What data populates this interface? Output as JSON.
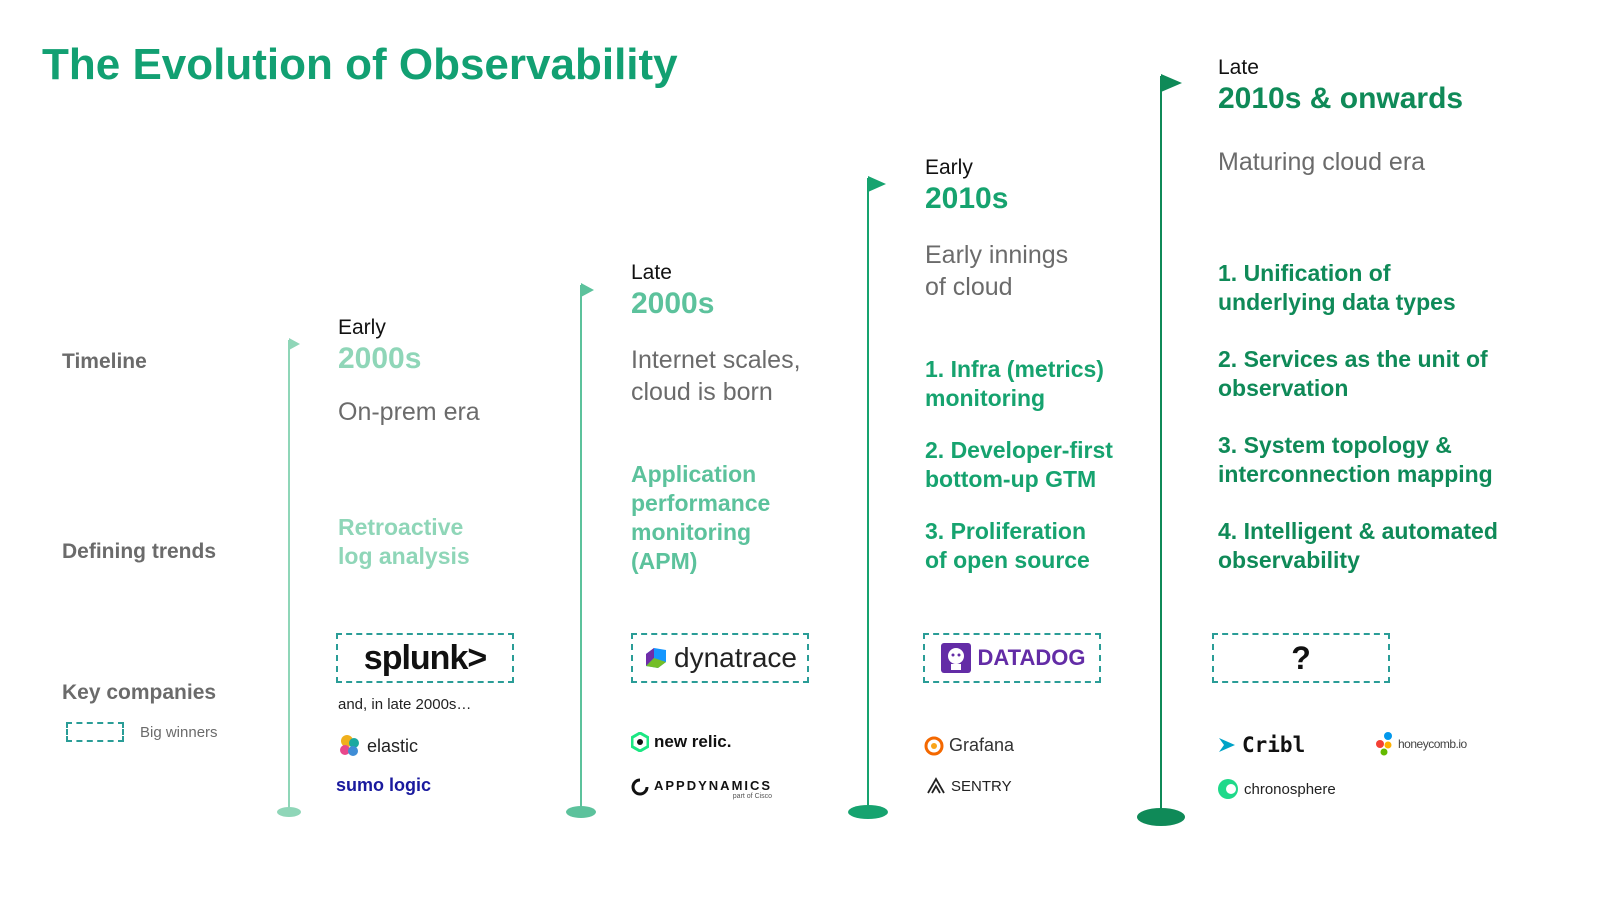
{
  "title": "The Evolution of Observability",
  "row_labels": {
    "timeline": "Timeline",
    "defining_trends": "Defining trends",
    "key_companies": "Key companies"
  },
  "legend": {
    "label": "Big winners"
  },
  "colors": {
    "title": "#12a072",
    "era1": "#8fd6b8",
    "era2": "#5cc29c",
    "era3": "#16a36f",
    "era4": "#0f8a58",
    "box_border": "#2a9d97"
  },
  "eras": [
    {
      "when": "Early",
      "period": "2000s",
      "subtitle": [
        "On-prem era"
      ],
      "trends": [
        [
          "Retroactive",
          "log analysis"
        ]
      ],
      "big_winner": "splunk>",
      "note": "and, in late 2000s…",
      "others": [
        "elastic",
        "sumo logic"
      ]
    },
    {
      "when": "Late",
      "period": "2000s",
      "subtitle": [
        "Internet scales,",
        "cloud is born"
      ],
      "trends": [
        [
          "Application",
          "performance",
          "monitoring",
          "(APM)"
        ]
      ],
      "big_winner": "dynatrace",
      "others": [
        "new relic.",
        "APPDYNAMICS",
        "part of Cisco"
      ]
    },
    {
      "when": "Early",
      "period": "2010s",
      "subtitle": [
        "Early innings",
        "of cloud"
      ],
      "trends": [
        [
          "1. Infra (metrics)",
          "monitoring"
        ],
        [
          "2. Developer-first",
          "bottom-up GTM"
        ],
        [
          "3. Proliferation",
          "of open source"
        ]
      ],
      "big_winner": "DATADOG",
      "others": [
        "Grafana",
        "SENTRY"
      ]
    },
    {
      "when": "Late",
      "period": "2010s & onwards",
      "subtitle": [
        "Maturing cloud era"
      ],
      "trends": [
        [
          "1. Unification of",
          "underlying data types"
        ],
        [
          "2. Services as the unit of",
          "observation"
        ],
        [
          "3. System topology &",
          "interconnection mapping"
        ],
        [
          "4. Intelligent & automated",
          "observability"
        ]
      ],
      "big_winner": "?",
      "others": [
        "Cribl",
        "honeycomb.io",
        "chronosphere"
      ]
    }
  ]
}
